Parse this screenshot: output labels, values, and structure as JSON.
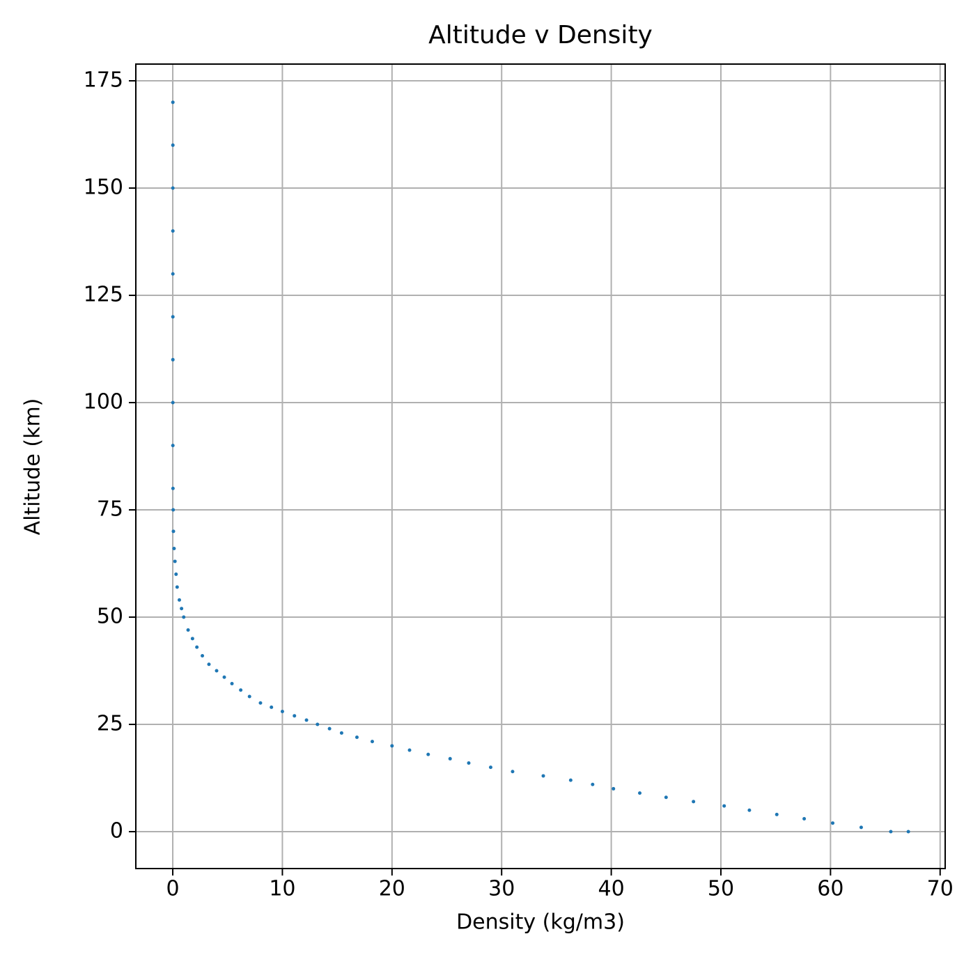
{
  "chart_data": {
    "type": "scatter",
    "title": "Altitude v Density",
    "xlabel": "Density (kg/m3)",
    "ylabel": "Altitude (km)",
    "series": [
      {
        "color": "#1f77b4",
        "x": [
          67.1,
          65.5,
          62.8,
          60.2,
          57.6,
          55.1,
          52.6,
          50.3,
          47.5,
          45.0,
          42.6,
          40.2,
          38.3,
          36.3,
          33.8,
          31.0,
          29.0,
          27.0,
          25.3,
          23.3,
          21.6,
          20.0,
          18.2,
          16.8,
          15.4,
          14.3,
          13.2,
          12.2,
          11.1,
          10.0,
          9.0,
          8.0,
          7.0,
          6.2,
          5.4,
          4.7,
          4.0,
          3.3,
          2.7,
          2.2,
          1.8,
          1.4,
          1.0,
          0.8,
          0.6,
          0.4,
          0.3,
          0.2,
          0.12,
          0.06,
          0.04,
          0.02,
          0.01,
          0.01,
          0.01,
          0.01,
          0.01,
          0.01,
          0.01,
          0.01,
          0.01
        ],
        "values": [
          0,
          0,
          1,
          2,
          3,
          4,
          5,
          6,
          7,
          8,
          9,
          10,
          11,
          12,
          13,
          14,
          15,
          16,
          17,
          18,
          19,
          20,
          21,
          22,
          23,
          24,
          25,
          26,
          27,
          28,
          29,
          30,
          31.5,
          33,
          34.5,
          36,
          37.5,
          39,
          41,
          43,
          45,
          47,
          50,
          52,
          54,
          57,
          60,
          63,
          66,
          70,
          75,
          80,
          90,
          100,
          110,
          120,
          130,
          140,
          150,
          160,
          170
        ]
      }
    ],
    "xlim": [
      -3.37,
      70.46
    ],
    "ylim": [
      -8.6,
      178.9
    ],
    "xticks": [
      0,
      10,
      20,
      30,
      40,
      50,
      60,
      70
    ],
    "yticks": [
      0,
      25,
      50,
      75,
      100,
      125,
      150,
      175
    ],
    "grid": true
  }
}
